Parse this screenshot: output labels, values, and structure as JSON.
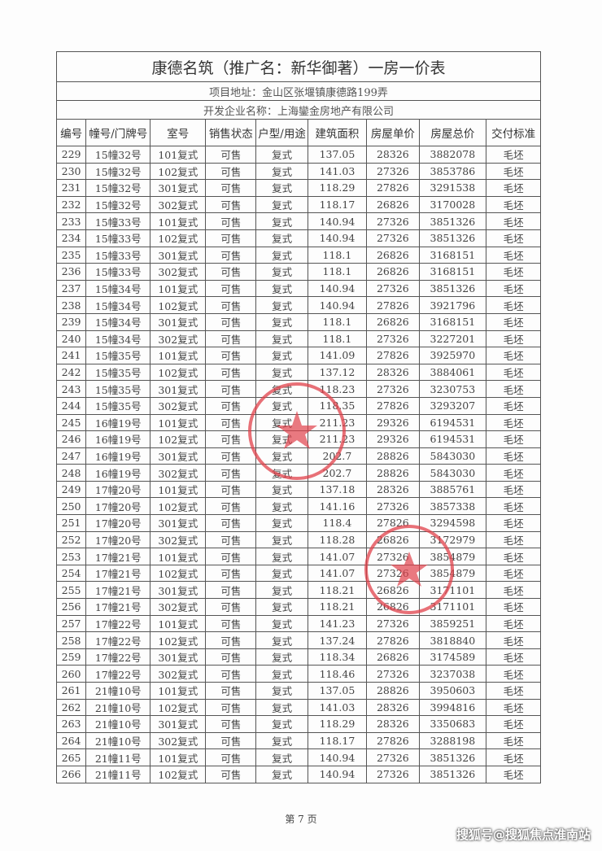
{
  "title": "康德名筑（推广名：新华御著）一房一价表",
  "address": "项目地址：金山区张堰镇康德路199弄",
  "developer": "开发企业名称：上海鑾金房地产有限公司",
  "columns": [
    "编号",
    "幢号/门牌号",
    "室号",
    "销售状态",
    "户型/用途",
    "建筑面积",
    "房屋单价",
    "房屋总价",
    "交付标准"
  ],
  "rows": [
    [
      "229",
      "15幢32号",
      "101复式",
      "可售",
      "复式",
      "137.05",
      "28326",
      "3882078",
      "毛坯"
    ],
    [
      "230",
      "15幢32号",
      "102复式",
      "可售",
      "复式",
      "141.03",
      "27326",
      "3853786",
      "毛坯"
    ],
    [
      "231",
      "15幢32号",
      "301复式",
      "可售",
      "复式",
      "118.29",
      "27826",
      "3291538",
      "毛坯"
    ],
    [
      "232",
      "15幢32号",
      "302复式",
      "可售",
      "复式",
      "118.17",
      "26826",
      "3170028",
      "毛坯"
    ],
    [
      "233",
      "15幢33号",
      "101复式",
      "可售",
      "复式",
      "140.94",
      "27326",
      "3851326",
      "毛坯"
    ],
    [
      "234",
      "15幢33号",
      "102复式",
      "可售",
      "复式",
      "140.94",
      "27326",
      "3851326",
      "毛坯"
    ],
    [
      "235",
      "15幢33号",
      "301复式",
      "可售",
      "复式",
      "118.1",
      "26826",
      "3168151",
      "毛坯"
    ],
    [
      "236",
      "15幢33号",
      "302复式",
      "可售",
      "复式",
      "118.1",
      "26826",
      "3168151",
      "毛坯"
    ],
    [
      "237",
      "15幢34号",
      "101复式",
      "可售",
      "复式",
      "140.94",
      "27326",
      "3851326",
      "毛坯"
    ],
    [
      "238",
      "15幢34号",
      "102复式",
      "可售",
      "复式",
      "140.94",
      "27826",
      "3921796",
      "毛坯"
    ],
    [
      "239",
      "15幢34号",
      "301复式",
      "可售",
      "复式",
      "118.1",
      "26826",
      "3168151",
      "毛坯"
    ],
    [
      "240",
      "15幢34号",
      "302复式",
      "可售",
      "复式",
      "118.1",
      "27326",
      "3227201",
      "毛坯"
    ],
    [
      "241",
      "15幢35号",
      "101复式",
      "可售",
      "复式",
      "141.09",
      "27826",
      "3925970",
      "毛坯"
    ],
    [
      "242",
      "15幢35号",
      "102复式",
      "可售",
      "复式",
      "137.12",
      "28326",
      "3884061",
      "毛坯"
    ],
    [
      "243",
      "15幢35号",
      "301复式",
      "可售",
      "复式",
      "118.23",
      "27326",
      "3230753",
      "毛坯"
    ],
    [
      "244",
      "15幢35号",
      "302复式",
      "可售",
      "复式",
      "118.35",
      "27826",
      "3293207",
      "毛坯"
    ],
    [
      "245",
      "16幢19号",
      "101复式",
      "可售",
      "复式",
      "211.23",
      "29326",
      "6194531",
      "毛坯"
    ],
    [
      "246",
      "16幢19号",
      "102复式",
      "可售",
      "复式",
      "211.23",
      "29326",
      "6194531",
      "毛坯"
    ],
    [
      "247",
      "16幢19号",
      "301复式",
      "可售",
      "复式",
      "202.7",
      "28826",
      "5843030",
      "毛坯"
    ],
    [
      "248",
      "16幢19号",
      "302复式",
      "可售",
      "复式",
      "202.7",
      "28826",
      "5843030",
      "毛坯"
    ],
    [
      "249",
      "17幢20号",
      "101复式",
      "可售",
      "复式",
      "137.18",
      "28326",
      "3885761",
      "毛坯"
    ],
    [
      "250",
      "17幢20号",
      "102复式",
      "可售",
      "复式",
      "141.16",
      "27326",
      "3857338",
      "毛坯"
    ],
    [
      "251",
      "17幢20号",
      "301复式",
      "可售",
      "复式",
      "118.4",
      "27826",
      "3294598",
      "毛坯"
    ],
    [
      "252",
      "17幢20号",
      "302复式",
      "可售",
      "复式",
      "118.28",
      "26826",
      "3172979",
      "毛坯"
    ],
    [
      "253",
      "17幢21号",
      "101复式",
      "可售",
      "复式",
      "141.07",
      "27326",
      "3854879",
      "毛坯"
    ],
    [
      "254",
      "17幢21号",
      "102复式",
      "可售",
      "复式",
      "141.07",
      "27326",
      "3854879",
      "毛坯"
    ],
    [
      "255",
      "17幢21号",
      "301复式",
      "可售",
      "复式",
      "118.21",
      "26826",
      "3171101",
      "毛坯"
    ],
    [
      "256",
      "17幢21号",
      "302复式",
      "可售",
      "复式",
      "118.21",
      "26826",
      "3171101",
      "毛坯"
    ],
    [
      "257",
      "17幢22号",
      "101复式",
      "可售",
      "复式",
      "141.23",
      "27326",
      "3859251",
      "毛坯"
    ],
    [
      "258",
      "17幢22号",
      "102复式",
      "可售",
      "复式",
      "137.24",
      "27826",
      "3818840",
      "毛坯"
    ],
    [
      "259",
      "17幢22号",
      "301复式",
      "可售",
      "复式",
      "118.34",
      "26826",
      "3174589",
      "毛坯"
    ],
    [
      "260",
      "17幢22号",
      "302复式",
      "可售",
      "复式",
      "118.46",
      "27326",
      "3237038",
      "毛坯"
    ],
    [
      "261",
      "21幢10号",
      "101复式",
      "可售",
      "复式",
      "137.05",
      "28826",
      "3950603",
      "毛坯"
    ],
    [
      "262",
      "21幢10号",
      "102复式",
      "可售",
      "复式",
      "141.03",
      "28326",
      "3994816",
      "毛坯"
    ],
    [
      "263",
      "21幢10号",
      "301复式",
      "可售",
      "复式",
      "118.29",
      "28326",
      "3350683",
      "毛坯"
    ],
    [
      "264",
      "21幢10号",
      "302复式",
      "可售",
      "复式",
      "118.17",
      "27826",
      "3288198",
      "毛坯"
    ],
    [
      "265",
      "21幢11号",
      "101复式",
      "可售",
      "复式",
      "140.94",
      "27326",
      "3851326",
      "毛坯"
    ],
    [
      "266",
      "21幢11号",
      "102复式",
      "可售",
      "复式",
      "140.94",
      "27326",
      "3851326",
      "毛坯"
    ]
  ],
  "footer": "第 7 页",
  "watermark": "搜狐号@搜狐焦点淮南站",
  "stamp_color": "#e0404a",
  "icons": [
    "company-seal-stamp",
    "company-seal-stamp"
  ]
}
